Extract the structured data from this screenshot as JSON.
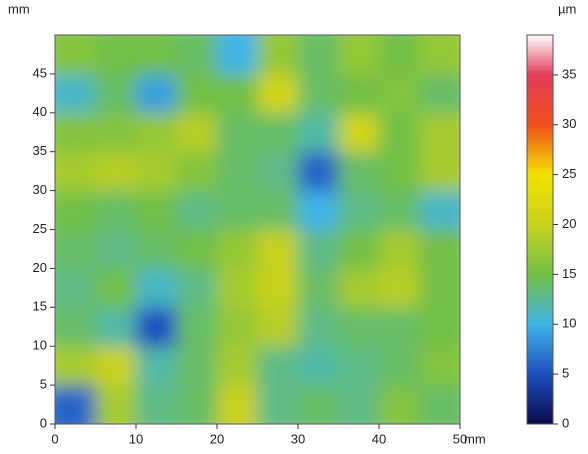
{
  "chart_data": {
    "type": "heatmap",
    "y_label": "mm",
    "x_label": "mm",
    "colorbar_label": "µm",
    "x": [
      0,
      5,
      10,
      15,
      20,
      25,
      30,
      35,
      40,
      45,
      50
    ],
    "y": [
      0,
      5,
      10,
      15,
      20,
      25,
      30,
      35,
      40,
      45,
      50
    ],
    "values": [
      [
        6,
        18,
        13,
        14,
        20,
        13,
        14,
        13,
        16,
        14
      ],
      [
        18,
        20,
        12,
        14,
        18,
        13,
        12,
        13,
        14,
        16
      ],
      [
        14,
        12,
        5,
        14,
        17,
        19,
        13,
        14,
        14,
        15
      ],
      [
        13,
        15,
        11,
        13,
        18,
        20,
        14,
        18,
        19,
        15
      ],
      [
        14,
        13,
        14,
        15,
        17,
        20,
        13,
        15,
        18,
        15
      ],
      [
        15,
        14,
        15,
        13,
        14,
        14,
        10,
        13,
        14,
        11
      ],
      [
        18,
        19,
        18,
        16,
        14,
        13,
        6,
        14,
        15,
        18
      ],
      [
        16,
        16,
        17,
        19,
        14,
        14,
        12,
        21,
        15,
        18
      ],
      [
        11,
        14,
        9,
        15,
        15,
        21,
        14,
        15,
        16,
        14
      ],
      [
        16,
        15,
        15,
        14,
        10,
        17,
        14,
        17,
        15,
        17
      ]
    ],
    "xlim": [
      0,
      50
    ],
    "ylim": [
      0,
      50
    ],
    "zlim": [
      0,
      39
    ],
    "xticks": [
      0,
      10,
      20,
      30,
      40,
      50
    ],
    "yticks": [
      0,
      5,
      10,
      15,
      20,
      25,
      30,
      35,
      40,
      45
    ],
    "zticks": [
      0,
      5,
      10,
      15,
      20,
      25,
      30,
      35
    ],
    "colorscale": [
      [
        0,
        "#0a0a4a"
      ],
      [
        5,
        "#1f4fbf"
      ],
      [
        10,
        "#3fb4e6"
      ],
      [
        15,
        "#72c046"
      ],
      [
        20,
        "#c8d21e"
      ],
      [
        25,
        "#f2e000"
      ],
      [
        30,
        "#f0501a"
      ],
      [
        35,
        "#e23c58"
      ],
      [
        39,
        "#ffffff"
      ]
    ]
  }
}
